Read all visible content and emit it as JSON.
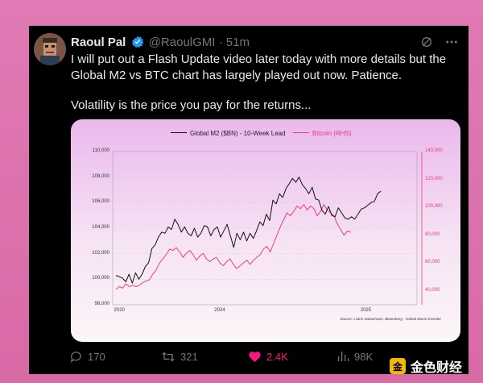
{
  "tweet": {
    "author_name": "Raoul Pal",
    "handle": "@RaoulGMI",
    "time": "51m",
    "text_p1": "I will put out a Flash Update video later today with more details but the Global M2 vs BTC chart has largely played out now. Patience.",
    "text_p2": "Volatility is the price you pay for the returns..."
  },
  "actions": {
    "replies": "170",
    "retweets": "321",
    "likes": "2.4K",
    "views": "98K"
  },
  "watermark": {
    "text": "金色财经",
    "logo_glyph": "金"
  },
  "chart_data": {
    "type": "line",
    "legend": [
      "Global M2 ($BN) - 10-Week Lead",
      "Bitcoin (RHS)"
    ],
    "y_left_ticks": [
      "110,000",
      "108,000",
      "106,000",
      "104,000",
      "102,000",
      "100,000",
      "98,000"
    ],
    "y_left_range": [
      98000,
      110000
    ],
    "y_right_ticks": [
      "140,000",
      "120,000",
      "100,000",
      "80,000",
      "60,000",
      "40,000"
    ],
    "y_right_range": [
      30000,
      140000
    ],
    "x_ticks": [
      "2020",
      "2024",
      "2025"
    ],
    "source": "Source: LSEG Datastream, Bloomberg - Global Macro Investor",
    "series": [
      {
        "name": "Global M2 ($BN) - 10-Week Lead",
        "color": "#111111",
        "values": [
          100300,
          100200,
          100100,
          99800,
          100400,
          99700,
          100500,
          100000,
          100400,
          101000,
          101300,
          102400,
          102700,
          103300,
          103700,
          103600,
          104100,
          103900,
          104700,
          104300,
          103700,
          104100,
          103600,
          103400,
          104000,
          103300,
          103600,
          104200,
          104100,
          103400,
          103900,
          104100,
          103300,
          103800,
          104300,
          103400,
          102500,
          103600,
          103100,
          103700,
          103000,
          103600,
          103200,
          103800,
          104500,
          104200,
          105100,
          104600,
          106200,
          105900,
          106700,
          106400,
          107100,
          107500,
          107900,
          107600,
          108000,
          107400,
          107100,
          106700,
          107200,
          106300,
          106200,
          105400,
          105100,
          105700,
          105000,
          104900,
          105600,
          105200,
          104800,
          104700,
          104900,
          104700,
          105100,
          105500,
          105600,
          105800,
          106000,
          106100,
          106700,
          106900
        ]
      },
      {
        "name": "Bitcoin (RHS)",
        "color": "#e8417d",
        "values": [
          41000,
          43000,
          42000,
          45000,
          43000,
          44000,
          43000,
          44000,
          46000,
          47000,
          48000,
          52000,
          55000,
          60000,
          63000,
          66000,
          70000,
          69000,
          71000,
          68000,
          64000,
          67000,
          69000,
          66000,
          62000,
          65000,
          67000,
          63000,
          61000,
          63000,
          64000,
          60000,
          58000,
          61000,
          63000,
          59000,
          56000,
          58000,
          60000,
          62000,
          59000,
          62000,
          64000,
          66000,
          70000,
          72000,
          68000,
          74000,
          80000,
          86000,
          91000,
          96000,
          94000,
          97000,
          101000,
          99000,
          102000,
          98000,
          101000,
          99000,
          94000,
          97000,
          102000,
          98000,
          96000,
          94000,
          88000,
          84000,
          80000,
          83000,
          82000
        ]
      }
    ]
  }
}
